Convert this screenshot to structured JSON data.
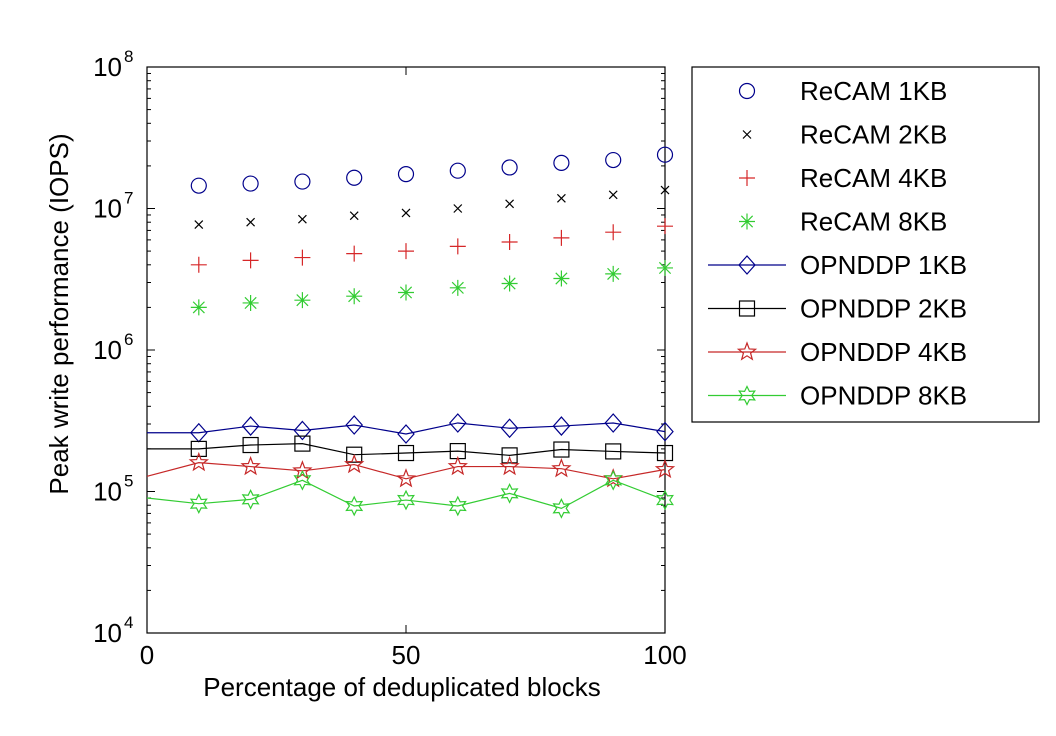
{
  "chart_data": {
    "type": "scatter",
    "xlabel": "Percentage of deduplicated blocks",
    "ylabel": "Peak write performance (IOPS)",
    "xlim": [
      0,
      100
    ],
    "ylim": [
      10000,
      100000000
    ],
    "yscale": "log",
    "grid": false,
    "legend_position": "outside-right",
    "x_ticks": [
      {
        "value": 0,
        "label": "0"
      },
      {
        "value": 50,
        "label": "50"
      },
      {
        "value": 100,
        "label": "100"
      }
    ],
    "y_ticks": [
      {
        "value": 10000,
        "base": "10",
        "exp": "4"
      },
      {
        "value": 100000,
        "base": "10",
        "exp": "5"
      },
      {
        "value": 1000000,
        "base": "10",
        "exp": "6"
      },
      {
        "value": 10000000,
        "base": "10",
        "exp": "7"
      },
      {
        "value": 100000000,
        "base": "10",
        "exp": "8"
      }
    ],
    "x": [
      10,
      20,
      30,
      40,
      50,
      60,
      70,
      80,
      90,
      100
    ],
    "series": [
      {
        "name": "ReCAM 1KB",
        "marker": "circle",
        "line": false,
        "color": "#00008b",
        "values": [
          14500000,
          15000000,
          15500000,
          16500000,
          17500000,
          18500000,
          19500000,
          21000000,
          22000000,
          24000000
        ]
      },
      {
        "name": "ReCAM 2KB",
        "marker": "x",
        "line": false,
        "color": "#000000",
        "values": [
          7700000,
          8000000,
          8400000,
          8900000,
          9300000,
          10000000,
          10800000,
          11800000,
          12500000,
          13500000
        ]
      },
      {
        "name": "ReCAM 4KB",
        "marker": "plus",
        "line": false,
        "color": "#d62728",
        "values": [
          4000000,
          4300000,
          4500000,
          4800000,
          5000000,
          5400000,
          5800000,
          6200000,
          6800000,
          7500000
        ]
      },
      {
        "name": "ReCAM 8KB",
        "marker": "asterisk",
        "line": false,
        "color": "#33cc33",
        "values": [
          2000000,
          2150000,
          2250000,
          2400000,
          2550000,
          2750000,
          2950000,
          3200000,
          3450000,
          3800000
        ]
      },
      {
        "name": "OPNDDP 1KB",
        "marker": "diamond",
        "line": true,
        "color": "#00008b",
        "values": [
          260000,
          290000,
          270000,
          295000,
          255000,
          305000,
          280000,
          290000,
          305000,
          265000
        ]
      },
      {
        "name": "OPNDDP 2KB",
        "marker": "square",
        "line": true,
        "color": "#000000",
        "values": [
          200000,
          213000,
          218000,
          182000,
          187000,
          193000,
          180000,
          198000,
          192000,
          187000
        ]
      },
      {
        "name": "OPNDDP 4KB",
        "marker": "star5",
        "line": true,
        "color": "#c62828",
        "values": [
          160000,
          150000,
          140000,
          155000,
          123000,
          150000,
          150000,
          145000,
          123000,
          143000
        ]
      },
      {
        "name": "OPNDDP 8KB",
        "marker": "star6",
        "line": true,
        "color": "#33cc33",
        "values": [
          82000,
          88000,
          120000,
          79000,
          87000,
          79000,
          97000,
          76000,
          120000,
          87000
        ]
      }
    ],
    "series_start": {
      "OPNDDP 1KB": [
        0,
        260000
      ],
      "OPNDDP 2KB": [
        0,
        200000
      ],
      "OPNDDP 4KB": [
        0,
        128000
      ],
      "OPNDDP 8KB": [
        0,
        90000
      ]
    }
  }
}
